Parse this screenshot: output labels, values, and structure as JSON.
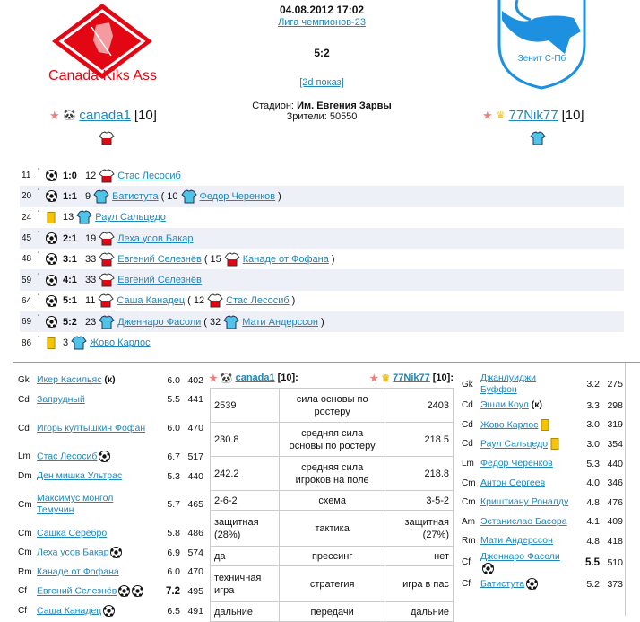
{
  "match": {
    "datetime": "04.08.2012 17:02",
    "league": "Лига чемпионов-23",
    "score": "5:2",
    "show_2d": "[2d показ]",
    "stadium_label": "Стадион:",
    "stadium": "Им. Евгения Зарвы",
    "spectators_label": "Зрители:",
    "spectators": "50550"
  },
  "home": {
    "logo_text": "Canada Kiks Ass",
    "manager": "canada1",
    "level": "[10]",
    "color": "#e30613",
    "manager_icon": "panda-icon"
  },
  "away": {
    "logo_text": "Зенит С-Пб",
    "manager": "77Nik77",
    "level": "[10]",
    "color": "#1e90e0",
    "manager_icon": "crown-icon"
  },
  "events": [
    {
      "minute": "11",
      "type": "goal",
      "score": "1:0",
      "num": "12",
      "team": "home",
      "player": "Стас Лесосиб"
    },
    {
      "minute": "20",
      "type": "goal",
      "score": "1:1",
      "num": "9",
      "team": "away",
      "player": "Батистута",
      "assist_num": "10",
      "assist": "Федор Черенков"
    },
    {
      "minute": "24",
      "type": "card",
      "num": "13",
      "team": "away",
      "player": "Раул Сальцедо"
    },
    {
      "minute": "45",
      "type": "goal",
      "score": "2:1",
      "num": "19",
      "team": "home",
      "player": "Леха усов Бакар"
    },
    {
      "minute": "48",
      "type": "goal",
      "score": "3:1",
      "num": "33",
      "team": "home",
      "player": "Евгений Селезнёв",
      "assist_num": "15",
      "assist": "Канаде от Фофана"
    },
    {
      "minute": "59",
      "type": "goal",
      "score": "4:1",
      "num": "33",
      "team": "home",
      "player": "Евгений Селезнёв"
    },
    {
      "minute": "64",
      "type": "goal",
      "score": "5:1",
      "num": "11",
      "team": "home",
      "player": "Саша Канадец",
      "assist_num": "12",
      "assist": "Стас Лесосиб"
    },
    {
      "minute": "69",
      "type": "goal",
      "score": "5:2",
      "num": "23",
      "team": "away",
      "player": "Дженнаро Фасоли",
      "assist_num": "32",
      "assist": "Мати Андерссон"
    },
    {
      "minute": "86",
      "type": "card",
      "num": "3",
      "team": "away",
      "player": "Жово Карлос"
    }
  ],
  "home_lineup": [
    {
      "pos": "Gk",
      "name": "Икер Касильяс",
      "captain": "(к)",
      "rating": "6.0",
      "power": "402"
    },
    {
      "pos": "Cd",
      "name": "Запрудный",
      "rating": "5.5",
      "power": "441"
    },
    {
      "pos": "Cd",
      "name": "Игорь култышкин Фофан",
      "rating": "6.0",
      "power": "470"
    },
    {
      "pos": "Lm",
      "name": "Стас Лесосиб",
      "goals": 1,
      "rating": "6.7",
      "power": "517"
    },
    {
      "pos": "Dm",
      "name": "Ден мишка Ультрас",
      "rating": "5.3",
      "power": "440"
    },
    {
      "pos": "Cm",
      "name": "Максимус монгол Темучин",
      "rating": "5.7",
      "power": "465"
    },
    {
      "pos": "Cm",
      "name": "Сашка Серебро",
      "rating": "5.8",
      "power": "486"
    },
    {
      "pos": "Cm",
      "name": "Леха усов Бакар",
      "goals": 1,
      "rating": "6.9",
      "power": "574"
    },
    {
      "pos": "Rm",
      "name": "Канаде от Фофана",
      "rating": "6.0",
      "power": "470"
    },
    {
      "pos": "Cf",
      "name": "Евгений Селезнёв",
      "goals": 2,
      "rating": "7.2",
      "best": true,
      "power": "495"
    },
    {
      "pos": "Cf",
      "name": "Саша Канадец",
      "goals": 1,
      "rating": "6.5",
      "power": "491"
    }
  ],
  "away_lineup": [
    {
      "pos": "Gk",
      "name": "Джанлуиджи Буффон",
      "rating": "3.2",
      "power": "275"
    },
    {
      "pos": "Cd",
      "name": "Эшли Коул",
      "captain": "(к)",
      "rating": "3.3",
      "power": "298"
    },
    {
      "pos": "Cd",
      "name": "Жово Карлос",
      "cards": 1,
      "rating": "3.0",
      "power": "319"
    },
    {
      "pos": "Cd",
      "name": "Раул Сальцедо",
      "cards": 1,
      "rating": "3.0",
      "power": "354"
    },
    {
      "pos": "Lm",
      "name": "Федор Черенков",
      "rating": "5.3",
      "power": "440"
    },
    {
      "pos": "Cm",
      "name": "Антон Сергеев",
      "rating": "4.0",
      "power": "346"
    },
    {
      "pos": "Cm",
      "name": "Криштиану Роналду",
      "rating": "4.8",
      "power": "476"
    },
    {
      "pos": "Am",
      "name": "Эстанислао Басора",
      "rating": "4.1",
      "power": "409"
    },
    {
      "pos": "Rm",
      "name": "Мати Андерссон",
      "rating": "4.8",
      "power": "418"
    },
    {
      "pos": "Cf",
      "name": "Дженнаро Фасоли",
      "goals": 1,
      "rating": "5.5",
      "best": true,
      "power": "510"
    },
    {
      "pos": "Cf",
      "name": "Батистута",
      "goals": 1,
      "rating": "5.2",
      "power": "373"
    }
  ],
  "comparison": {
    "home_header": "canada1",
    "away_header": "77Nik77",
    "level": "[10]:",
    "rows": [
      {
        "home": "2539",
        "label": "сила основы по ростеру",
        "away": "2403"
      },
      {
        "home": "230.8",
        "label": "средняя сила основы по ростеру",
        "away": "218.5"
      },
      {
        "home": "242.2",
        "label": "средняя сила игроков на поле",
        "away": "218.8"
      },
      {
        "home": "2-6-2",
        "label": "схема",
        "away": "3-5-2"
      },
      {
        "home": "защитная (28%)",
        "label": "тактика",
        "away": "защитная (27%)"
      },
      {
        "home": "да",
        "label": "прессинг",
        "away": "нет"
      },
      {
        "home": "техничная игра",
        "label": "стратегия",
        "away": "игра в пас"
      },
      {
        "home": "дальние",
        "label": "передачи",
        "away": "дальние"
      }
    ]
  }
}
